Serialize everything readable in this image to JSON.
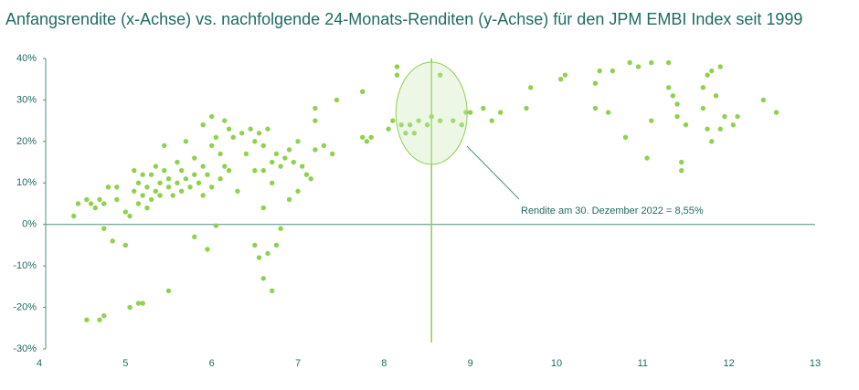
{
  "chart_data": {
    "type": "scatter",
    "title": "Anfangsrendite (x-Achse) vs. nachfolgende 24-Monats-Renditen (y-Achse) für den JPM EMBI Index seit 1999",
    "annotation": "Rendite am 30. Dezember 2022 = 8,55%",
    "reference_x": 8.55,
    "color": "#8fd14f",
    "xlim": [
      4,
      13
    ],
    "xticks": [
      4,
      5,
      6,
      7,
      8,
      9,
      10,
      11,
      12,
      13
    ],
    "ylim": [
      -30,
      40
    ],
    "yticks": [
      {
        "value": -30,
        "label": "-30%"
      },
      {
        "value": -20,
        "label": "-20%"
      },
      {
        "value": -10,
        "label": "-10%"
      },
      {
        "value": 0,
        "label": "0%"
      },
      {
        "value": 10,
        "label": "10%"
      },
      {
        "value": 20,
        "label": "20%"
      },
      {
        "value": 30,
        "label": "30%"
      },
      {
        "value": 40,
        "label": "40%"
      }
    ],
    "x": [
      4.4,
      4.45,
      4.55,
      4.6,
      4.65,
      4.7,
      4.75,
      4.8,
      4.9,
      4.9,
      4.75,
      4.85,
      5.0,
      5.0,
      5.05,
      5.1,
      5.1,
      5.15,
      5.15,
      5.2,
      5.2,
      5.25,
      5.25,
      5.3,
      5.3,
      5.35,
      5.35,
      5.4,
      5.4,
      5.45,
      5.45,
      5.5,
      5.5,
      5.55,
      5.6,
      5.6,
      5.65,
      5.65,
      5.7,
      5.7,
      5.75,
      5.8,
      5.8,
      5.85,
      5.9,
      5.9,
      5.95,
      6.0,
      6.0,
      6.0,
      5.9,
      6.05,
      6.1,
      6.1,
      6.15,
      6.15,
      6.2,
      6.2,
      6.25,
      6.3,
      6.35,
      6.4,
      6.45,
      6.5,
      6.5,
      6.55,
      6.6,
      6.6,
      6.65,
      6.7,
      6.7,
      6.75,
      6.8,
      6.85,
      6.9,
      6.9,
      6.95,
      7.0,
      7.0,
      7.05,
      7.1,
      7.15,
      7.2,
      7.2,
      7.2,
      7.3,
      7.45,
      7.4,
      7.75,
      7.75,
      7.8,
      7.85,
      4.55,
      4.75,
      4.7,
      5.05,
      5.15,
      5.2,
      5.5,
      5.8,
      5.95,
      6.05,
      6.5,
      6.55,
      6.6,
      6.65,
      6.7,
      6.75,
      6.6,
      6.8,
      8.05,
      8.1,
      8.15,
      8.15,
      8.2,
      8.25,
      8.3,
      8.35,
      8.4,
      8.5,
      8.55,
      8.65,
      8.65,
      8.8,
      8.9,
      8.95,
      9.0,
      9.15,
      9.25,
      9.35,
      9.65,
      9.7,
      10.05,
      10.1,
      10.45,
      10.5,
      10.45,
      10.6,
      10.65,
      10.8,
      10.85,
      10.95,
      11.05,
      11.1,
      11.1,
      11.3,
      11.3,
      11.35,
      11.4,
      11.4,
      11.45,
      11.45,
      11.5,
      11.7,
      11.7,
      11.75,
      11.8,
      11.8,
      11.75,
      11.85,
      11.9,
      11.95,
      11.9,
      12.05,
      12.1,
      12.4,
      12.55
    ],
    "y": [
      2,
      5,
      6,
      5,
      4,
      6,
      5,
      9,
      9,
      6,
      -1,
      -4,
      3,
      -5,
      2,
      13,
      8,
      10,
      5,
      12,
      7,
      9,
      4,
      12,
      6,
      14,
      8,
      10,
      7,
      19,
      13,
      11,
      9,
      7,
      15,
      10,
      13,
      8,
      20,
      11,
      9,
      16,
      12,
      10,
      14,
      7,
      12,
      26,
      19,
      9,
      24,
      21,
      17,
      11,
      25,
      14,
      23,
      13,
      21,
      8,
      22,
      17,
      23,
      13,
      20,
      22,
      19,
      13,
      23,
      15,
      10,
      17,
      14,
      16,
      18,
      6,
      15,
      20,
      8,
      14,
      12,
      11,
      28,
      25,
      18,
      19,
      30,
      17,
      32,
      21,
      20,
      21,
      -23,
      -22,
      -23,
      -20,
      -19,
      -19,
      -16,
      -3,
      -6,
      -0.3,
      -5,
      -8,
      -13,
      -7,
      -16,
      -5,
      4,
      -1,
      23,
      25,
      36,
      38,
      24,
      22,
      24,
      22,
      25,
      24,
      26,
      36,
      25,
      25,
      24,
      27,
      27,
      28,
      25,
      27,
      28,
      33,
      35,
      36,
      34,
      37,
      28,
      27,
      37,
      21,
      39,
      38,
      16,
      25,
      39,
      39,
      33,
      31,
      29,
      26,
      15,
      13,
      24,
      33,
      28,
      36,
      37,
      20,
      23,
      31,
      23,
      26,
      38,
      24,
      26,
      30,
      27
    ]
  }
}
